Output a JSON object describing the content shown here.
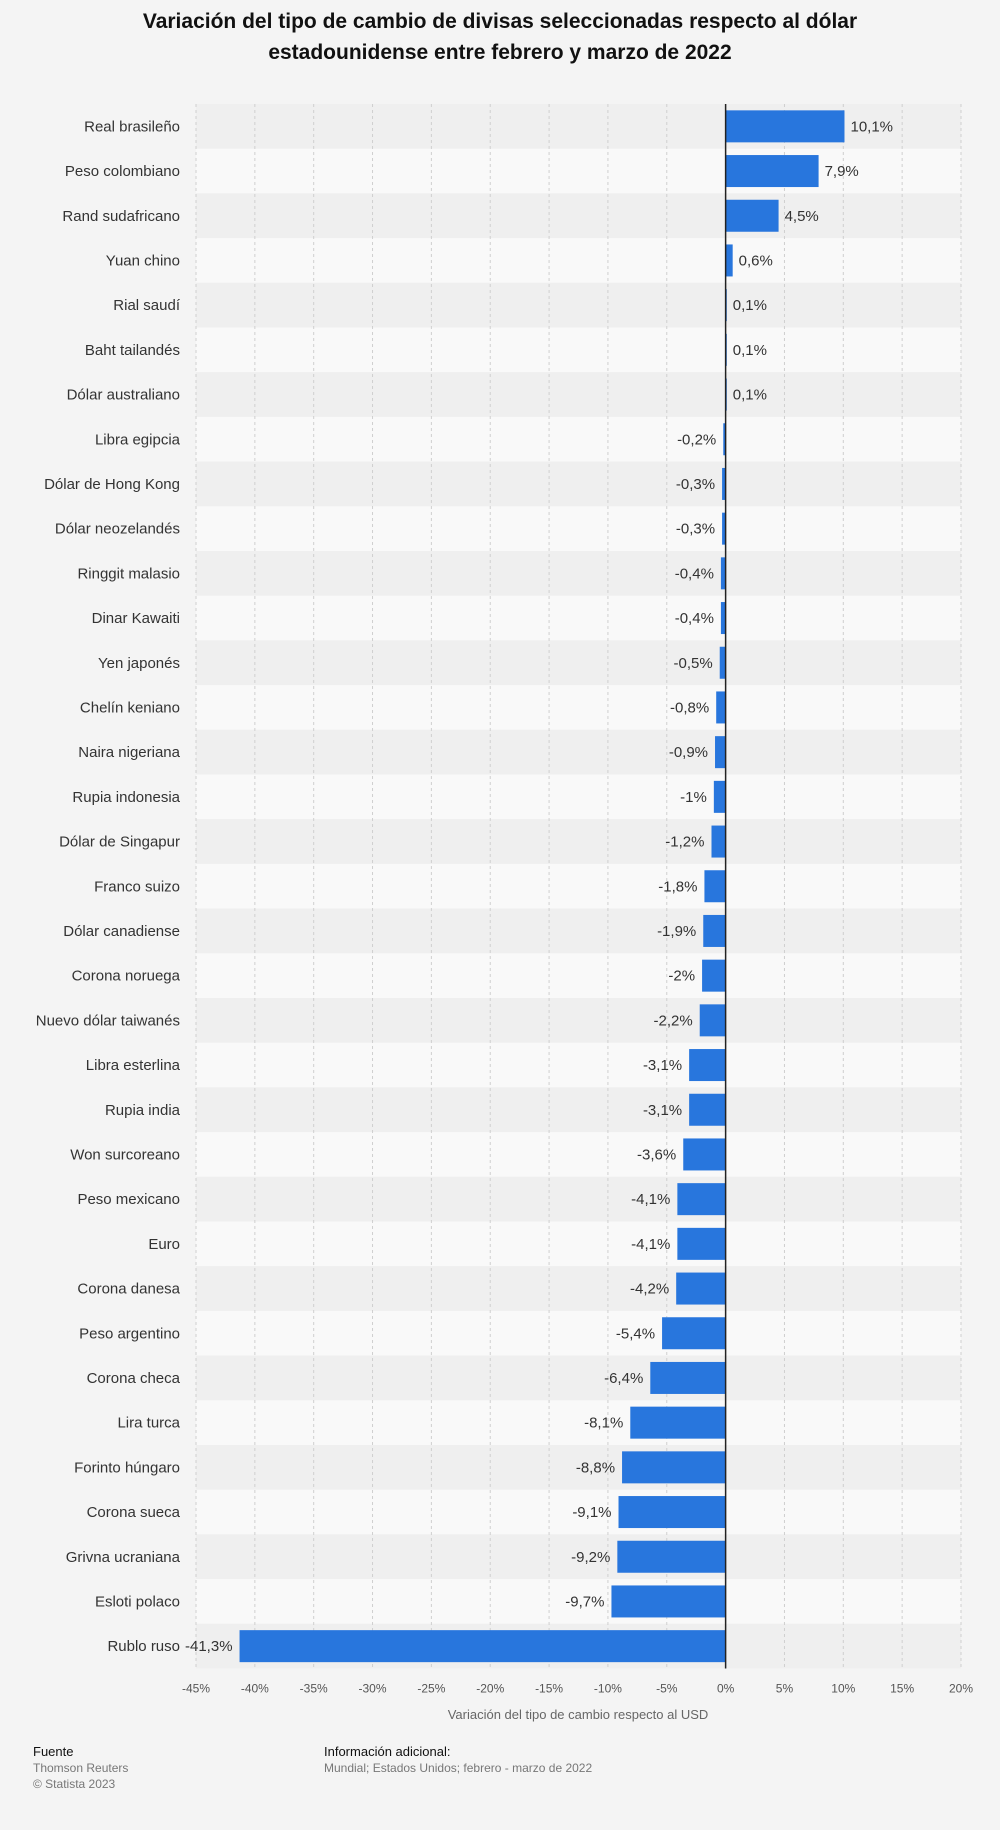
{
  "title": "Variación del tipo de cambio de divisas seleccionadas respecto al dólar estadounidense entre febrero y marzo de 2022",
  "footer": {
    "source_heading": "Fuente",
    "source_name": "Thomson Reuters",
    "copyright": "© Statista 2023",
    "info_heading": "Información adicional:",
    "info_text": "Mundial; Estados Unidos; febrero - marzo de 2022"
  },
  "chart_data": {
    "type": "bar",
    "orientation": "horizontal",
    "title": "Variación del tipo de cambio de divisas seleccionadas respecto al dólar estadounidense entre febrero y marzo de 2022",
    "xlabel": "Variación del tipo de cambio respecto al USD",
    "ylabel": "",
    "xlim": [
      -45,
      20
    ],
    "ticks": [
      -45,
      -40,
      -35,
      -30,
      -25,
      -20,
      -15,
      -10,
      -5,
      0,
      5,
      10,
      15,
      20
    ],
    "tick_labels": [
      "-45%",
      "-40%",
      "-35%",
      "-30%",
      "-25%",
      "-20%",
      "-15%",
      "-10%",
      "-5%",
      "0%",
      "5%",
      "10%",
      "15%",
      "20%"
    ],
    "grid": true,
    "bar_color": "#2876dd",
    "categories": [
      "Real brasileño",
      "Peso colombiano",
      "Rand sudafricano",
      "Yuan chino",
      "Rial saudí",
      "Baht tailandés",
      "Dólar australiano",
      "Libra egipcia",
      "Dólar de Hong Kong",
      "Dólar neozelandés",
      "Ringgit malasio",
      "Dinar Kawaiti",
      "Yen japonés",
      "Chelín keniano",
      "Naira nigeriana",
      "Rupia indonesia",
      "Dólar de Singapur",
      "Franco suizo",
      "Dólar canadiense",
      "Corona noruega",
      "Nuevo dólar taiwanés",
      "Libra esterlina",
      "Rupia india",
      "Won surcoreano",
      "Peso mexicano",
      "Euro",
      "Corona danesa",
      "Peso argentino",
      "Corona checa",
      "Lira turca",
      "Forinto húngaro",
      "Corona sueca",
      "Grivna ucraniana",
      "Esloti polaco",
      "Rublo ruso"
    ],
    "values": [
      10.1,
      7.9,
      4.5,
      0.6,
      0.1,
      0.1,
      0.1,
      -0.2,
      -0.3,
      -0.3,
      -0.4,
      -0.4,
      -0.5,
      -0.8,
      -0.9,
      -1,
      -1.2,
      -1.8,
      -1.9,
      -2,
      -2.2,
      -3.1,
      -3.1,
      -3.6,
      -4.1,
      -4.1,
      -4.2,
      -5.4,
      -6.4,
      -8.1,
      -8.8,
      -9.1,
      -9.2,
      -9.7,
      -41.3
    ],
    "value_labels": [
      "10,1%",
      "7,9%",
      "4,5%",
      "0,6%",
      "0,1%",
      "0,1%",
      "0,1%",
      "-0,2%",
      "-0,3%",
      "-0,3%",
      "-0,4%",
      "-0,4%",
      "-0,5%",
      "-0,8%",
      "-0,9%",
      "-1%",
      "-1,2%",
      "-1,8%",
      "-1,9%",
      "-2%",
      "-2,2%",
      "-3,1%",
      "-3,1%",
      "-3,6%",
      "-4,1%",
      "-4,1%",
      "-4,2%",
      "-5,4%",
      "-6,4%",
      "-8,1%",
      "-8,8%",
      "-9,1%",
      "-9,2%",
      "-9,7%",
      "-41,3%"
    ]
  }
}
